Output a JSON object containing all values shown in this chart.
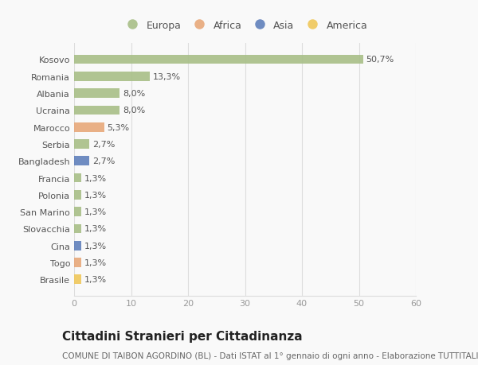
{
  "countries": [
    "Kosovo",
    "Romania",
    "Albania",
    "Ucraina",
    "Marocco",
    "Serbia",
    "Bangladesh",
    "Francia",
    "Polonia",
    "San Marino",
    "Slovacchia",
    "Cina",
    "Togo",
    "Brasile"
  ],
  "values": [
    50.7,
    13.3,
    8.0,
    8.0,
    5.3,
    2.7,
    2.7,
    1.3,
    1.3,
    1.3,
    1.3,
    1.3,
    1.3,
    1.3
  ],
  "labels": [
    "50,7%",
    "13,3%",
    "8,0%",
    "8,0%",
    "5,3%",
    "2,7%",
    "2,7%",
    "1,3%",
    "1,3%",
    "1,3%",
    "1,3%",
    "1,3%",
    "1,3%",
    "1,3%"
  ],
  "continents": [
    "Europa",
    "Europa",
    "Europa",
    "Europa",
    "Africa",
    "Europa",
    "Asia",
    "Europa",
    "Europa",
    "Europa",
    "Europa",
    "Asia",
    "Africa",
    "America"
  ],
  "continent_colors": {
    "Europa": "#a8bf87",
    "Africa": "#e8a87a",
    "Asia": "#6080bb",
    "America": "#f0c85a"
  },
  "legend_order": [
    "Europa",
    "Africa",
    "Asia",
    "America"
  ],
  "xlim": [
    0,
    60
  ],
  "xticks": [
    0,
    10,
    20,
    30,
    40,
    50,
    60
  ],
  "title": "Cittadini Stranieri per Cittadinanza",
  "subtitle": "COMUNE DI TAIBON AGORDINO (BL) - Dati ISTAT al 1° gennaio di ogni anno - Elaborazione TUTTITALIA.IT",
  "bg_color": "#f9f9f9",
  "grid_color": "#dddddd",
  "bar_height": 0.55,
  "title_fontsize": 11,
  "subtitle_fontsize": 7.5,
  "tick_fontsize": 8,
  "label_fontsize": 8,
  "legend_fontsize": 9
}
